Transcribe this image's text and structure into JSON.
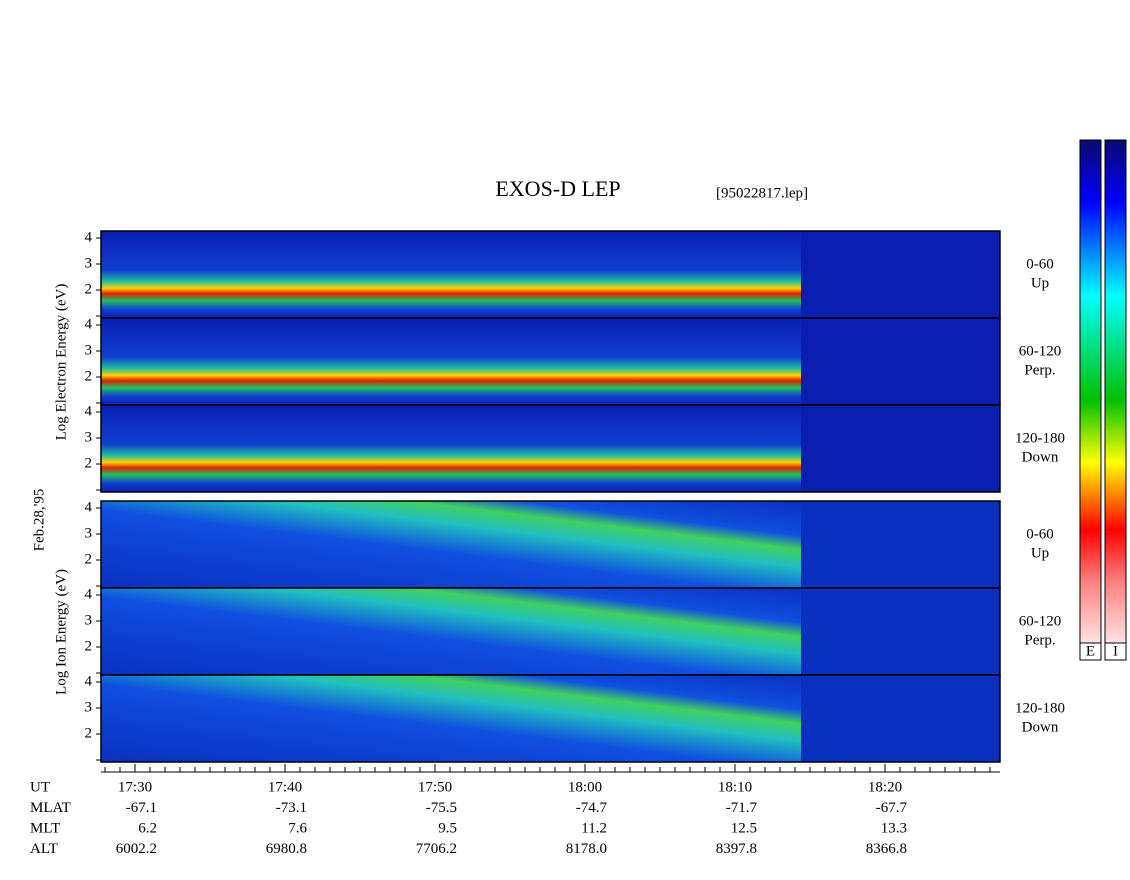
{
  "title": "EXOS-D LEP",
  "file": "[95022817.lep]",
  "date": "Feb.28,'95",
  "electron": {
    "axis_label": "Log Electron Energy (eV)",
    "panels": [
      {
        "range": "0-60",
        "direction": "Up"
      },
      {
        "range": "60-120",
        "direction": "Perp."
      },
      {
        "range": "120-180",
        "direction": "Down"
      }
    ],
    "yticks": [
      "4",
      "3",
      "2"
    ]
  },
  "ion": {
    "axis_label": "Log Ion Energy (eV)",
    "panels": [
      {
        "range": "0-60",
        "direction": "Up"
      },
      {
        "range": "60-120",
        "direction": "Perp."
      },
      {
        "range": "120-180",
        "direction": "Down"
      }
    ],
    "yticks": [
      "4",
      "3",
      "2"
    ]
  },
  "time_axis": {
    "rows": [
      "UT",
      "MLAT",
      "MLT",
      "ALT"
    ],
    "columns": [
      [
        "17:30",
        "-67.1",
        "6.2",
        "6002.2"
      ],
      [
        "17:40",
        "-73.1",
        "7.6",
        "6980.8"
      ],
      [
        "17:50",
        "-75.5",
        "9.5",
        "7706.2"
      ],
      [
        "18:00",
        "-74.7",
        "11.2",
        "8178.0"
      ],
      [
        "18:10",
        "-71.7",
        "12.5",
        "8397.8"
      ],
      [
        "18:20",
        "-67.7",
        "13.3",
        "8366.8"
      ]
    ]
  },
  "colorbars": [
    "E",
    "I"
  ]
}
